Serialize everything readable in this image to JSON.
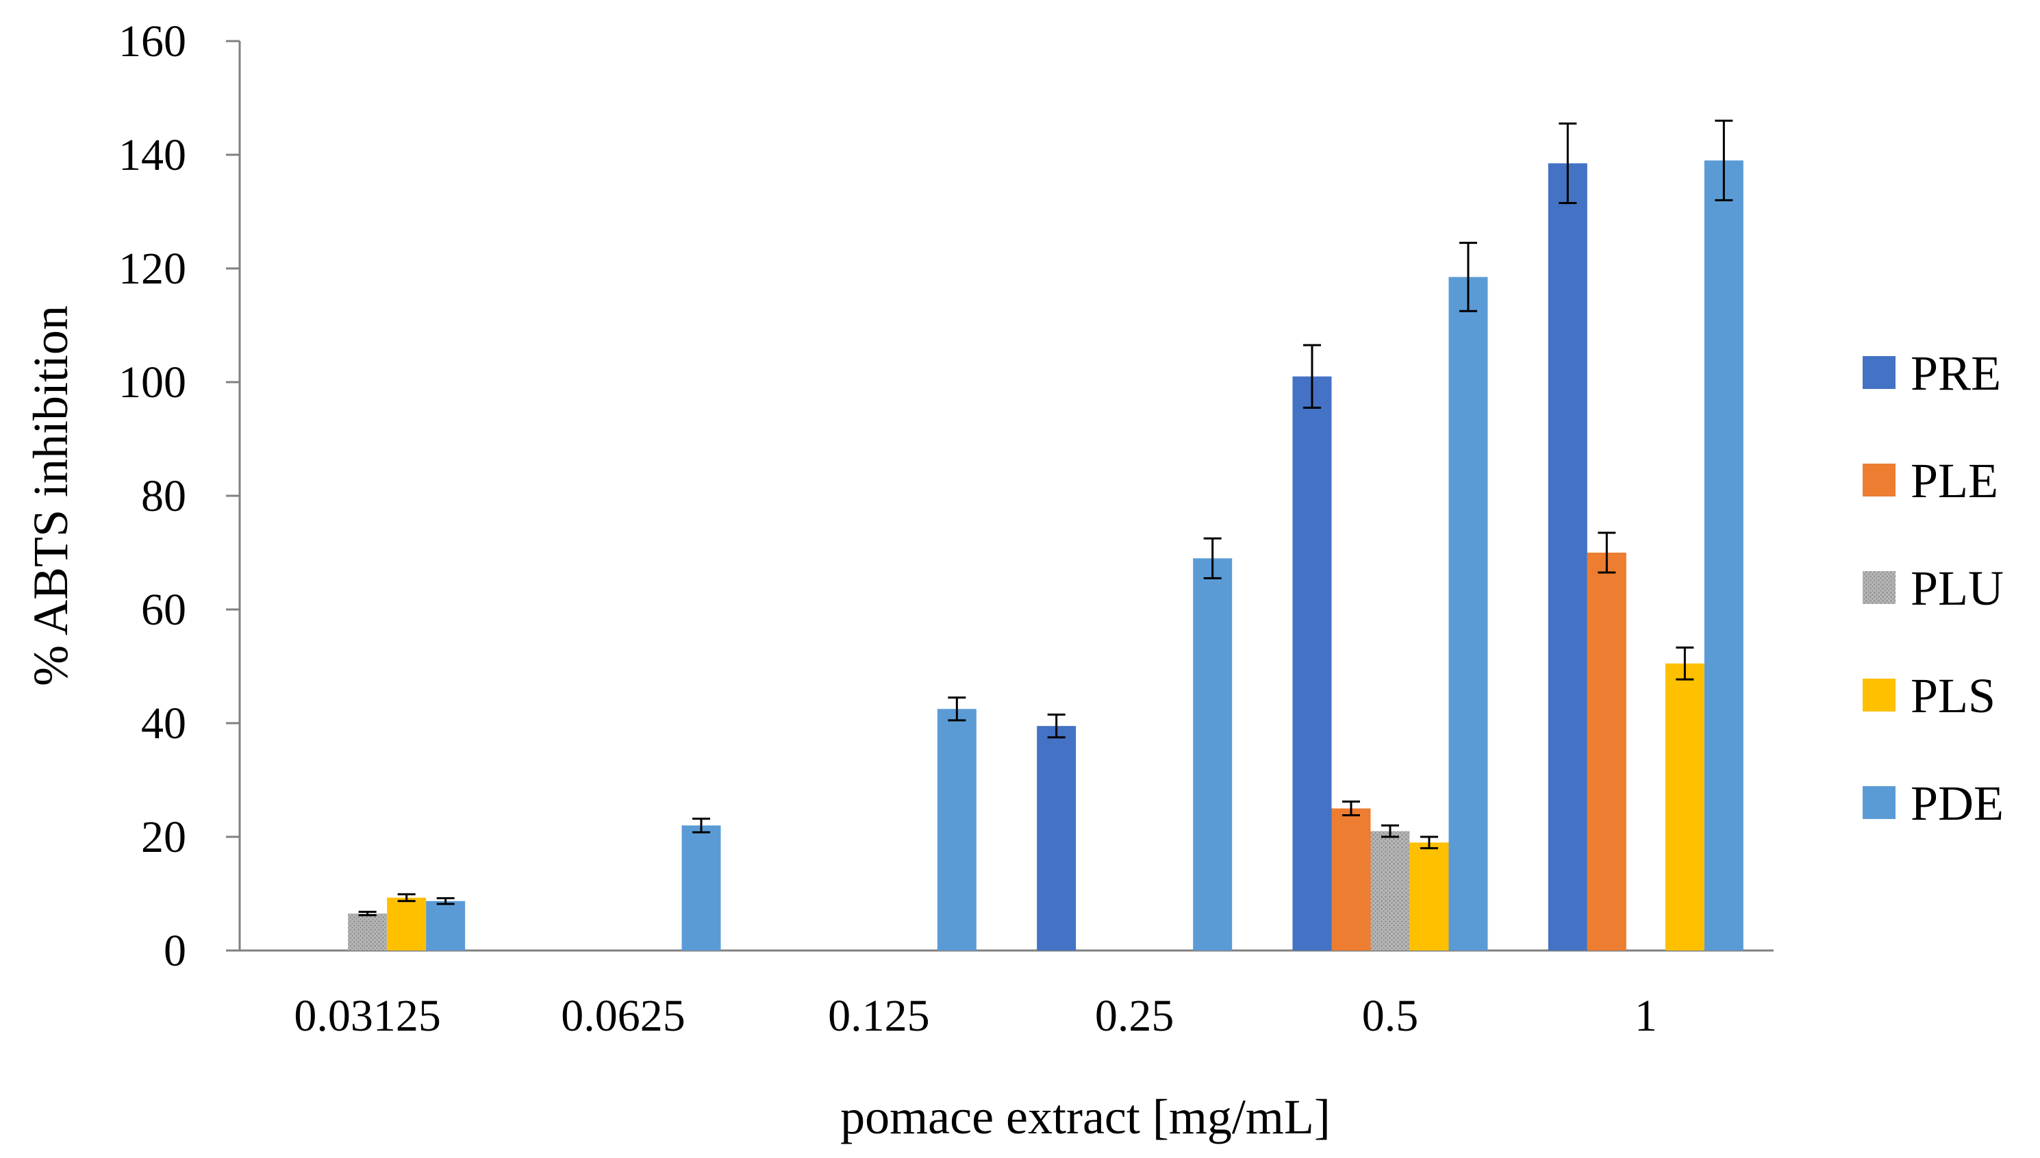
{
  "chart_data": {
    "type": "bar",
    "title": "",
    "xlabel": "pomace extract [mg/mL]",
    "ylabel": "% ABTS inhibition",
    "ylim": [
      0,
      160
    ],
    "yticks": [
      0,
      20,
      40,
      60,
      80,
      100,
      120,
      140,
      160
    ],
    "categories": [
      "0.03125",
      "0.0625",
      "0.125",
      "0.25",
      "0.5",
      "1"
    ],
    "grid": false,
    "legend_position": "right",
    "series": [
      {
        "name": "PRE",
        "color": "#4472C4",
        "pattern": "solid",
        "values": [
          null,
          null,
          null,
          39.5,
          101,
          138.5
        ],
        "errors": [
          null,
          null,
          null,
          2,
          5.5,
          7
        ]
      },
      {
        "name": "PLE",
        "color": "#ED7D31",
        "pattern": "solid",
        "values": [
          null,
          null,
          null,
          null,
          25,
          70
        ],
        "errors": [
          null,
          null,
          null,
          null,
          1.2,
          3.5
        ]
      },
      {
        "name": "PLU",
        "color": "#A5A5A5",
        "pattern": "dotted",
        "values": [
          6.5,
          null,
          null,
          null,
          21,
          null
        ],
        "errors": [
          0.3,
          null,
          null,
          null,
          1,
          null
        ]
      },
      {
        "name": "PLS",
        "color": "#FFC000",
        "pattern": "solid",
        "values": [
          9.3,
          null,
          null,
          null,
          19,
          50.5
        ],
        "errors": [
          0.6,
          null,
          null,
          null,
          1,
          2.8
        ]
      },
      {
        "name": "PDE",
        "color": "#5B9BD5",
        "pattern": "solid",
        "values": [
          8.7,
          22,
          42.5,
          69,
          118.5,
          139
        ],
        "errors": [
          0.5,
          1.2,
          2,
          3.5,
          6,
          7
        ]
      }
    ]
  }
}
